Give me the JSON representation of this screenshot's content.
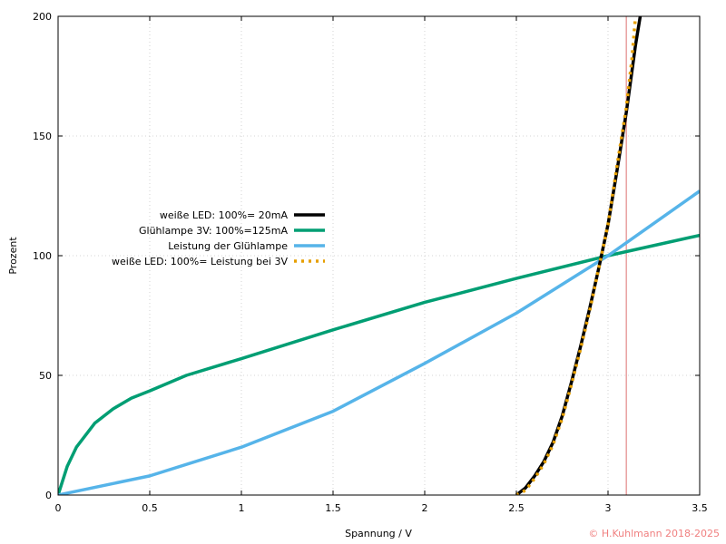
{
  "colors": {
    "led": "#000000",
    "lamp": "#009e73",
    "lamp_power": "#56b4e9",
    "led_power": "#e69f00",
    "marker": "#e8a0a0",
    "copyright": "#f08080"
  },
  "copyright": "© H.Kuhlmann 2018-2025",
  "chart_data": {
    "type": "line",
    "xlabel": "Spannung / V",
    "ylabel": "Prozent",
    "xlim": [
      0,
      3.5
    ],
    "ylim": [
      0,
      200
    ],
    "xticks": [
      0,
      0.5,
      1,
      1.5,
      2,
      2.5,
      3,
      3.5
    ],
    "xtick_labels": [
      "0",
      "0.5",
      "1",
      "1.5",
      "2",
      "2.5",
      "3",
      "3.5"
    ],
    "yticks": [
      0,
      50,
      100,
      150,
      200
    ],
    "ytick_labels": [
      "0",
      "50",
      "100",
      "150",
      "200"
    ],
    "grid": true,
    "legend_position": "center-left",
    "vertical_marker_x": 3.1,
    "series": [
      {
        "name": "weiße LED:  100%=  20mA",
        "style": "solid",
        "color": "#000000",
        "x": [
          2.5,
          2.55,
          2.6,
          2.65,
          2.7,
          2.75,
          2.8,
          2.85,
          2.9,
          2.95,
          3.0,
          3.05,
          3.1,
          3.15,
          3.18
        ],
        "y": [
          0,
          3,
          8,
          14,
          22,
          33,
          47,
          62,
          78,
          95,
          113,
          136,
          160,
          188,
          202
        ]
      },
      {
        "name": "Glühlampe 3V: 100%=125mA",
        "style": "solid",
        "color": "#009e73",
        "x": [
          0,
          0.05,
          0.1,
          0.2,
          0.3,
          0.4,
          0.5,
          0.7,
          1.0,
          1.5,
          2.0,
          2.5,
          3.0,
          3.5
        ],
        "y": [
          0,
          12,
          20,
          30,
          36,
          40.5,
          43.5,
          50,
          57,
          69,
          80.5,
          90.5,
          100,
          108.5
        ]
      },
      {
        "name": "Leistung der Glühlampe",
        "style": "solid",
        "color": "#56b4e9",
        "x": [
          0,
          0.25,
          0.5,
          1.0,
          1.5,
          2.0,
          2.5,
          3.0,
          3.5
        ],
        "y": [
          0,
          4,
          8,
          20,
          35,
          55,
          76,
          100,
          127
        ]
      },
      {
        "name": "weiße LED:  100%= Leistung bei 3V",
        "style": "dotted",
        "color": "#e69f00",
        "x": [
          2.5,
          2.55,
          2.6,
          2.65,
          2.7,
          2.75,
          2.8,
          2.85,
          2.9,
          2.95,
          3.0,
          3.05,
          3.1,
          3.13,
          3.15
        ],
        "y": [
          0,
          2,
          7,
          13,
          21,
          32,
          46,
          61,
          77,
          95,
          113,
          138,
          162,
          182,
          200
        ]
      }
    ]
  }
}
